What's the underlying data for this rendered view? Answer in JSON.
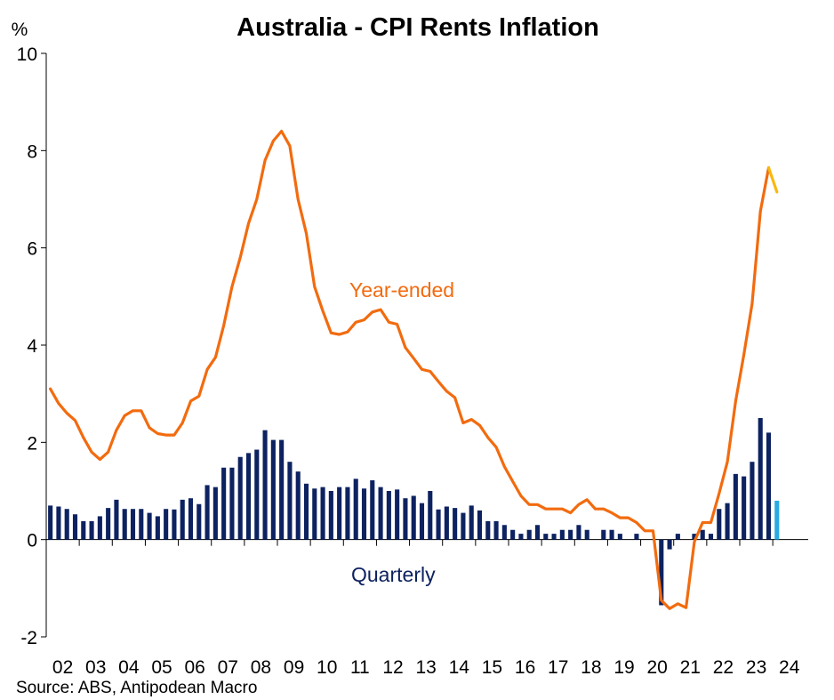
{
  "chart_data": {
    "type": "bar",
    "title": "Australia - CPI Rents Inflation",
    "ylabel": "%",
    "source": "Source: ABS, Antipodean Macro",
    "ylim": [
      -2,
      10
    ],
    "yticks": [
      10,
      8,
      6,
      4,
      2,
      0,
      -2
    ],
    "xlim": [
      2002.0,
      2024.75
    ],
    "xtick_labels": [
      "02",
      "03",
      "04",
      "05",
      "06",
      "07",
      "08",
      "09",
      "10",
      "11",
      "12",
      "13",
      "14",
      "15",
      "16",
      "17",
      "18",
      "19",
      "20",
      "21",
      "22",
      "23",
      "24"
    ],
    "grid": false,
    "annotations": [
      {
        "text": "Year-ended",
        "series": "year_ended"
      },
      {
        "text": "Quarterly",
        "series": "quarterly"
      }
    ],
    "colors": {
      "year_ended": "#F26B0F",
      "year_ended_latest": "#F9B90F",
      "quarterly": "#0D2260",
      "quarterly_latest": "#29ABE2",
      "axis": "#000000"
    },
    "series": [
      {
        "name": "Year-ended",
        "type": "line",
        "x": [
          2002.0,
          2002.25,
          2002.5,
          2002.75,
          2003.0,
          2003.25,
          2003.5,
          2003.75,
          2004.0,
          2004.25,
          2004.5,
          2004.75,
          2005.0,
          2005.25,
          2005.5,
          2005.75,
          2006.0,
          2006.25,
          2006.5,
          2006.75,
          2007.0,
          2007.25,
          2007.5,
          2007.75,
          2008.0,
          2008.25,
          2008.5,
          2008.75,
          2009.0,
          2009.25,
          2009.5,
          2009.75,
          2010.0,
          2010.25,
          2010.5,
          2010.75,
          2011.0,
          2011.25,
          2011.5,
          2011.75,
          2012.0,
          2012.25,
          2012.5,
          2012.75,
          2013.0,
          2013.25,
          2013.5,
          2013.75,
          2014.0,
          2014.25,
          2014.5,
          2014.75,
          2015.0,
          2015.25,
          2015.5,
          2015.75,
          2016.0,
          2016.25,
          2016.5,
          2016.75,
          2017.0,
          2017.25,
          2017.5,
          2017.75,
          2018.0,
          2018.25,
          2018.5,
          2018.75,
          2019.0,
          2019.25,
          2019.5,
          2019.75,
          2020.0,
          2020.25,
          2020.5,
          2020.75,
          2021.0,
          2021.25,
          2021.5,
          2021.75,
          2022.0,
          2022.25,
          2022.5,
          2022.75,
          2023.0,
          2023.25,
          2023.5,
          2023.75
        ],
        "values": [
          3.1,
          2.8,
          2.6,
          2.45,
          2.1,
          1.8,
          1.65,
          1.8,
          2.25,
          2.55,
          2.65,
          2.65,
          2.3,
          2.18,
          2.15,
          2.15,
          2.4,
          2.85,
          2.95,
          3.5,
          3.75,
          4.4,
          5.2,
          5.8,
          6.5,
          7.0,
          7.8,
          8.2,
          8.4,
          8.1,
          7.0,
          6.3,
          5.2,
          4.7,
          4.25,
          4.22,
          4.27,
          4.47,
          4.52,
          4.68,
          4.73,
          4.47,
          4.43,
          3.95,
          3.73,
          3.5,
          3.46,
          3.25,
          3.05,
          2.92,
          2.4,
          2.47,
          2.35,
          2.1,
          1.9,
          1.5,
          1.2,
          0.9,
          0.72,
          0.72,
          0.63,
          0.63,
          0.63,
          0.55,
          0.72,
          0.82,
          0.63,
          0.63,
          0.55,
          0.45,
          0.45,
          0.35,
          0.18,
          0.18,
          -1.25,
          -1.42,
          -1.32,
          -1.4,
          -0.05,
          0.35,
          0.35,
          0.95,
          1.6,
          2.85,
          3.8,
          4.85,
          6.75,
          7.65
        ]
      },
      {
        "name": "Year-ended (latest)",
        "type": "line",
        "x": [
          2023.75,
          2024.0
        ],
        "values": [
          7.65,
          7.15
        ]
      },
      {
        "name": "Quarterly",
        "type": "bar",
        "x": [
          2002.0,
          2002.25,
          2002.5,
          2002.75,
          2003.0,
          2003.25,
          2003.5,
          2003.75,
          2004.0,
          2004.25,
          2004.5,
          2004.75,
          2005.0,
          2005.25,
          2005.5,
          2005.75,
          2006.0,
          2006.25,
          2006.5,
          2006.75,
          2007.0,
          2007.25,
          2007.5,
          2007.75,
          2008.0,
          2008.25,
          2008.5,
          2008.75,
          2009.0,
          2009.25,
          2009.5,
          2009.75,
          2010.0,
          2010.25,
          2010.5,
          2010.75,
          2011.0,
          2011.25,
          2011.5,
          2011.75,
          2012.0,
          2012.25,
          2012.5,
          2012.75,
          2013.0,
          2013.25,
          2013.5,
          2013.75,
          2014.0,
          2014.25,
          2014.5,
          2014.75,
          2015.0,
          2015.25,
          2015.5,
          2015.75,
          2016.0,
          2016.25,
          2016.5,
          2016.75,
          2017.0,
          2017.25,
          2017.5,
          2017.75,
          2018.0,
          2018.25,
          2018.5,
          2018.75,
          2019.0,
          2019.25,
          2019.5,
          2019.75,
          2020.0,
          2020.25,
          2020.5,
          2020.75,
          2021.0,
          2021.25,
          2021.5,
          2021.75,
          2022.0,
          2022.25,
          2022.5,
          2022.75,
          2023.0,
          2023.25,
          2023.5,
          2023.75
        ],
        "values": [
          0.7,
          0.68,
          0.63,
          0.52,
          0.38,
          0.38,
          0.48,
          0.65,
          0.82,
          0.63,
          0.63,
          0.63,
          0.55,
          0.48,
          0.63,
          0.62,
          0.82,
          0.85,
          0.73,
          1.12,
          1.08,
          1.48,
          1.48,
          1.7,
          1.78,
          1.85,
          2.25,
          2.05,
          2.05,
          1.6,
          1.4,
          1.15,
          1.05,
          1.08,
          1.0,
          1.08,
          1.08,
          1.25,
          1.05,
          1.22,
          1.08,
          1.0,
          1.03,
          0.85,
          0.9,
          0.75,
          1.0,
          0.62,
          0.68,
          0.65,
          0.55,
          0.7,
          0.6,
          0.38,
          0.38,
          0.3,
          0.2,
          0.12,
          0.2,
          0.3,
          0.12,
          0.12,
          0.2,
          0.2,
          0.3,
          0.2,
          0.0,
          0.2,
          0.2,
          0.12,
          0.0,
          0.12,
          0.0,
          0.0,
          -1.35,
          -0.2,
          0.12,
          0.0,
          0.12,
          0.2,
          0.12,
          0.63,
          0.75,
          1.35,
          1.3,
          1.6,
          2.5,
          2.2
        ]
      },
      {
        "name": "Quarterly (latest)",
        "type": "bar",
        "x": [
          2024.0
        ],
        "values": [
          0.8
        ]
      }
    ]
  }
}
